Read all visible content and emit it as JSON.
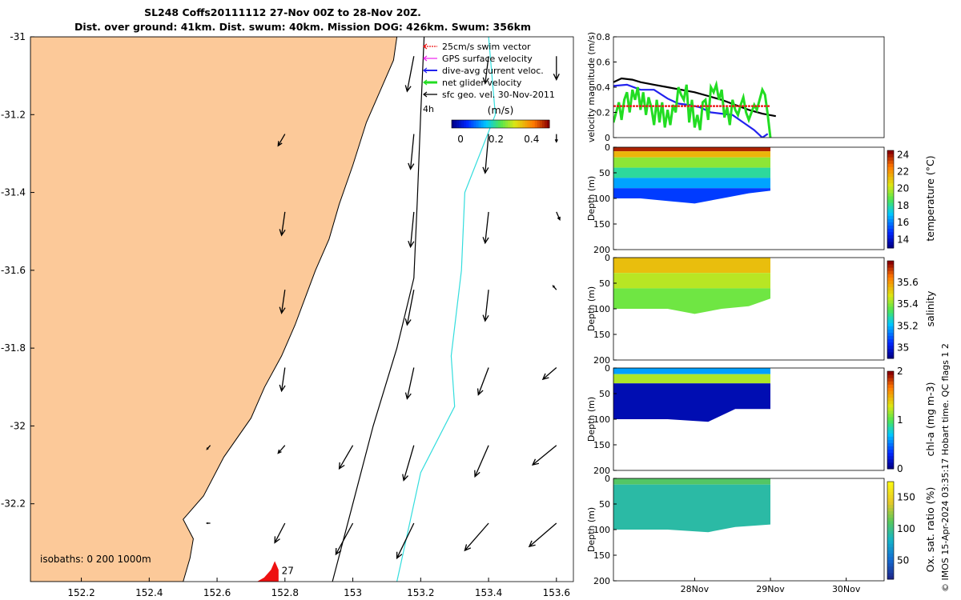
{
  "title": {
    "line1": "SL248 Coffs20111112 27-Nov 00Z to 28-Nov 20Z.",
    "line2": "Dist. over ground: 41km. Dist. swum: 40km. Mission DOG: 426km. Swum: 356km"
  },
  "side_note": "© IMOS 15-Apr-2024 03:35:17 Hobart time. QC flags 1  2",
  "colors": {
    "land": "#fcc999",
    "coast": "#000000",
    "isobath_200": "#000000",
    "isobath_1000": "#33dddd",
    "swim_vector": "#ee1111",
    "gps_velocity": "#ee22ee",
    "dive_avg_current": "#2222ee",
    "net_glider": "#22dd22",
    "sfc_geo": "#000000",
    "glider_track": "#ee1111"
  },
  "chart_data": [
    {
      "type": "map",
      "xlim": [
        152.05,
        153.65
      ],
      "ylim": [
        -32.4,
        -31.0
      ],
      "x_ticks": [
        152.2,
        152.4,
        152.6,
        152.8,
        153,
        153.2,
        153.4,
        153.6
      ],
      "y_ticks": [
        -31,
        -31.2,
        -31.4,
        -31.6,
        -31.8,
        -32,
        -32.2
      ],
      "legend": {
        "placement": "top-right",
        "entries": [
          "25cm/s swim vector",
          "GPS surface velocity",
          "dive-avg current veloc.",
          "net glider velocity",
          "sfc geo. vel. 30-Nov-2011"
        ],
        "interval_label": "4h"
      },
      "colorbar": {
        "label": "(m/s)",
        "range": [
          -0.05,
          0.5
        ],
        "ticks": [
          "0",
          "0.2",
          "0.4"
        ]
      },
      "isobaths_label": "isobaths: 0   200  1000m",
      "track_label": "27"
    },
    {
      "type": "line",
      "ylabel": "velocity magnitude (m/s)",
      "ylim": [
        0,
        0.8
      ],
      "yticks": [
        "0",
        "0.2",
        "0.4",
        "0.6",
        "0.8"
      ],
      "xlim": [
        0,
        1
      ],
      "grid": false,
      "series": [
        {
          "color": "#000000",
          "x": [
            0.0,
            0.03,
            0.07,
            0.1,
            0.15,
            0.2,
            0.25,
            0.3,
            0.35,
            0.4,
            0.45,
            0.5,
            0.55,
            0.6
          ],
          "y": [
            0.44,
            0.47,
            0.46,
            0.44,
            0.42,
            0.4,
            0.38,
            0.36,
            0.33,
            0.3,
            0.26,
            0.22,
            0.19,
            0.17
          ]
        },
        {
          "color": "#2222ee",
          "x": [
            0.0,
            0.05,
            0.1,
            0.15,
            0.2,
            0.24,
            0.28,
            0.32,
            0.36,
            0.4,
            0.44,
            0.48,
            0.52,
            0.55,
            0.57
          ],
          "y": [
            0.41,
            0.42,
            0.38,
            0.38,
            0.31,
            0.27,
            0.26,
            0.24,
            0.2,
            0.19,
            0.18,
            0.12,
            0.06,
            0.0,
            0.03
          ]
        },
        {
          "color": "#22dd22",
          "x": [
            0.0,
            0.01,
            0.02,
            0.03,
            0.04,
            0.05,
            0.06,
            0.07,
            0.08,
            0.09,
            0.1,
            0.11,
            0.12,
            0.13,
            0.14,
            0.15,
            0.16,
            0.17,
            0.18,
            0.19,
            0.2,
            0.21,
            0.22,
            0.23,
            0.24,
            0.25,
            0.26,
            0.27,
            0.28,
            0.29,
            0.3,
            0.31,
            0.32,
            0.33,
            0.34,
            0.35,
            0.36,
            0.37,
            0.38,
            0.39,
            0.4,
            0.41,
            0.42,
            0.43,
            0.44,
            0.45,
            0.46,
            0.47,
            0.48,
            0.49,
            0.5,
            0.51,
            0.52,
            0.53,
            0.54,
            0.55,
            0.56,
            0.57,
            0.58
          ],
          "y": [
            0.12,
            0.2,
            0.28,
            0.14,
            0.3,
            0.36,
            0.2,
            0.38,
            0.3,
            0.4,
            0.22,
            0.36,
            0.18,
            0.32,
            0.24,
            0.1,
            0.3,
            0.12,
            0.28,
            0.08,
            0.22,
            0.1,
            0.26,
            0.2,
            0.4,
            0.34,
            0.3,
            0.42,
            0.12,
            0.3,
            0.08,
            0.18,
            0.06,
            0.28,
            0.3,
            0.14,
            0.4,
            0.36,
            0.42,
            0.3,
            0.38,
            0.16,
            0.24,
            0.1,
            0.3,
            0.22,
            0.18,
            0.26,
            0.32,
            0.2,
            0.14,
            0.2,
            0.26,
            0.22,
            0.3,
            0.38,
            0.34,
            0.18,
            0.0
          ]
        },
        {
          "color": "#ee1111",
          "dashed": true,
          "x": [
            0.0,
            0.58
          ],
          "y": [
            0.25,
            0.25
          ]
        }
      ]
    },
    {
      "type": "heatmap",
      "ylabel": "Depth (m)",
      "colorbar_label": "temperature (°C)",
      "ylim": [
        0,
        200
      ],
      "yticks": [
        "0",
        "50",
        "100",
        "150",
        "200"
      ],
      "cbar_range": [
        13,
        24.5
      ],
      "cbar_ticks": [
        "14",
        "16",
        "18",
        "20",
        "22",
        "24"
      ],
      "xlim": [
        0,
        1
      ],
      "max_x": 0.58,
      "depth_profile": [
        [
          0.0,
          100
        ],
        [
          0.1,
          100
        ],
        [
          0.2,
          105
        ],
        [
          0.3,
          110
        ],
        [
          0.4,
          100
        ],
        [
          0.5,
          90
        ],
        [
          0.58,
          85
        ]
      ],
      "layers": [
        [
          0,
          8,
          24
        ],
        [
          8,
          20,
          21.5
        ],
        [
          20,
          40,
          19.5
        ],
        [
          40,
          60,
          18
        ],
        [
          60,
          80,
          16.5
        ],
        [
          80,
          200,
          15
        ]
      ]
    },
    {
      "type": "heatmap",
      "ylabel": "Depth (m)",
      "colorbar_label": "salinity",
      "ylim": [
        0,
        200
      ],
      "yticks": [
        "0",
        "50",
        "100",
        "150",
        "200"
      ],
      "cbar_range": [
        34.9,
        35.8
      ],
      "cbar_ticks": [
        "35",
        "35.2",
        "35.4",
        "35.6"
      ],
      "xlim": [
        0,
        1
      ],
      "max_x": 0.58,
      "depth_profile": [
        [
          0.0,
          100
        ],
        [
          0.1,
          100
        ],
        [
          0.2,
          100
        ],
        [
          0.3,
          110
        ],
        [
          0.4,
          100
        ],
        [
          0.5,
          95
        ],
        [
          0.58,
          80
        ]
      ],
      "layers": [
        [
          0,
          30,
          35.55
        ],
        [
          30,
          60,
          35.45
        ],
        [
          60,
          200,
          35.38
        ]
      ]
    },
    {
      "type": "heatmap",
      "ylabel": "Depth (m)",
      "colorbar_label": "chl-a (mg m-3)",
      "ylim": [
        0,
        200
      ],
      "yticks": [
        "0",
        "50",
        "100",
        "150",
        "200"
      ],
      "cbar_range": [
        0,
        2
      ],
      "cbar_ticks": [
        "0",
        "1",
        "2"
      ],
      "xlim": [
        0,
        1
      ],
      "max_x": 0.58,
      "depth_profile": [
        [
          0.0,
          100
        ],
        [
          0.2,
          100
        ],
        [
          0.35,
          105
        ],
        [
          0.45,
          80
        ],
        [
          0.58,
          80
        ]
      ],
      "layers": [
        [
          0,
          12,
          0.6
        ],
        [
          12,
          30,
          1.2
        ],
        [
          30,
          200,
          0.1
        ]
      ]
    },
    {
      "type": "heatmap",
      "ylabel": "Depth (m)",
      "colorbar_label": "Ox. sat. ratio (%)",
      "ylim": [
        0,
        200
      ],
      "yticks": [
        "0",
        "50",
        "100",
        "150",
        "200"
      ],
      "cbar_range": [
        20,
        175
      ],
      "cbar_ticks": [
        "50",
        "100",
        "150"
      ],
      "xlim": [
        0,
        1
      ],
      "max_x": 0.58,
      "xticks": [
        {
          "x": 0.3,
          "label": "28Nov"
        },
        {
          "x": 0.58,
          "label": "29Nov"
        },
        {
          "x": 0.86,
          "label": "30Nov"
        }
      ],
      "depth_profile": [
        [
          0.0,
          100
        ],
        [
          0.2,
          100
        ],
        [
          0.35,
          105
        ],
        [
          0.45,
          95
        ],
        [
          0.58,
          90
        ]
      ],
      "layers": [
        [
          0,
          12,
          110
        ],
        [
          12,
          200,
          92
        ]
      ]
    }
  ]
}
